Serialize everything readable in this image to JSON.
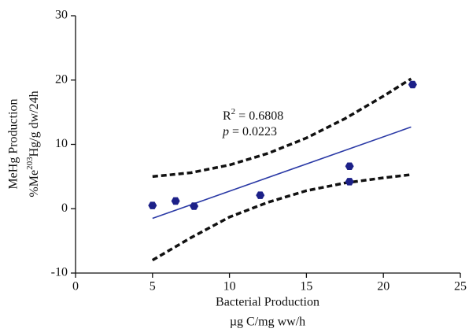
{
  "chart_data": {
    "type": "scatter",
    "x_label": [
      "Bacterial Production",
      "µg C/mg ww/h"
    ],
    "y_label": {
      "line1": "MeHg Production",
      "line2": [
        "%Me",
        "203",
        "Hg/g dw/24h"
      ]
    },
    "annotation_r2": [
      "R",
      "2",
      " = 0.6808"
    ],
    "annotation_p": [
      "p",
      " = 0.0223"
    ],
    "xlim": [
      0,
      25
    ],
    "xticks": [
      0,
      5,
      10,
      15,
      20,
      25
    ],
    "ylim": [
      -10,
      30
    ],
    "yticks": [
      -10,
      0,
      10,
      20,
      30
    ],
    "points": {
      "color": "#1c2088",
      "x": [
        5.0,
        6.5,
        7.7,
        12.0,
        17.8,
        17.8,
        21.9
      ],
      "y": [
        0.5,
        1.2,
        0.4,
        2.1,
        6.6,
        4.2,
        19.3
      ]
    },
    "fit": {
      "color": "#2b3aa6",
      "x": [
        5.0,
        21.8
      ],
      "y": [
        -1.5,
        12.7
      ]
    },
    "upper_band": {
      "color": "#111111",
      "x": [
        5,
        7.5,
        10,
        12.5,
        15,
        17.5,
        20,
        21.8
      ],
      "y": [
        5.0,
        5.6,
        6.8,
        8.6,
        11.0,
        14.0,
        17.5,
        20.2
      ]
    },
    "lower_band": {
      "color": "#111111",
      "x": [
        5,
        7.5,
        10,
        12.5,
        15,
        17.5,
        20,
        21.8
      ],
      "y": [
        -8.0,
        -4.5,
        -1.3,
        1.0,
        2.8,
        4.0,
        4.8,
        5.3
      ]
    }
  }
}
